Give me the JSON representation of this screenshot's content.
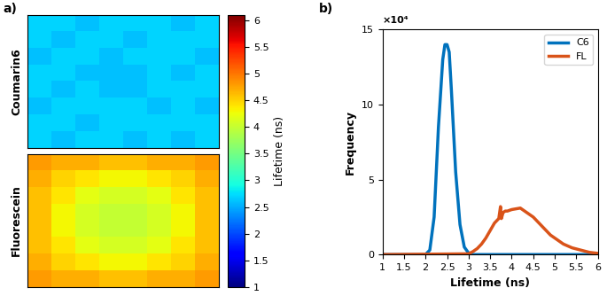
{
  "chart_data": [
    {
      "type": "heatmap",
      "title": "a)",
      "tick_labels": false,
      "panels": [
        {
          "name": "Coumarin6",
          "cells": [
            [
              2.7,
              2.7,
              2.6,
              2.7,
              2.7,
              2.7,
              2.6,
              2.7
            ],
            [
              2.7,
              2.6,
              2.7,
              2.7,
              2.6,
              2.7,
              2.7,
              2.7
            ],
            [
              2.6,
              2.7,
              2.7,
              2.6,
              2.7,
              2.7,
              2.7,
              2.6
            ],
            [
              2.7,
              2.7,
              2.6,
              2.6,
              2.6,
              2.7,
              2.6,
              2.7
            ],
            [
              2.7,
              2.6,
              2.7,
              2.6,
              2.6,
              2.7,
              2.7,
              2.7
            ],
            [
              2.6,
              2.7,
              2.7,
              2.7,
              2.7,
              2.6,
              2.7,
              2.6
            ],
            [
              2.7,
              2.7,
              2.6,
              2.7,
              2.7,
              2.7,
              2.7,
              2.7
            ],
            [
              2.7,
              2.6,
              2.7,
              2.7,
              2.6,
              2.7,
              2.6,
              2.7
            ]
          ]
        },
        {
          "name": "Fluorescein",
          "cells": [
            [
              4.8,
              4.7,
              4.7,
              4.6,
              4.6,
              4.7,
              4.7,
              4.8
            ],
            [
              4.7,
              4.5,
              4.4,
              4.3,
              4.3,
              4.4,
              4.5,
              4.7
            ],
            [
              4.6,
              4.4,
              4.2,
              4.1,
              4.1,
              4.2,
              4.4,
              4.6
            ],
            [
              4.6,
              4.3,
              4.1,
              4.0,
              4.0,
              4.1,
              4.3,
              4.6
            ],
            [
              4.6,
              4.3,
              4.1,
              4.0,
              4.0,
              4.1,
              4.3,
              4.6
            ],
            [
              4.6,
              4.4,
              4.2,
              4.1,
              4.1,
              4.2,
              4.4,
              4.6
            ],
            [
              4.7,
              4.5,
              4.4,
              4.3,
              4.3,
              4.4,
              4.5,
              4.7
            ],
            [
              4.8,
              4.7,
              4.7,
              4.6,
              4.6,
              4.7,
              4.7,
              4.8
            ]
          ]
        }
      ],
      "colorbar_label": "Lifetime (ns)",
      "colorbar_range": [
        1,
        6.1
      ],
      "colorbar_ticks": [
        1,
        1.5,
        2,
        2.5,
        3,
        3.5,
        4,
        4.5,
        5,
        5.5,
        6
      ]
    },
    {
      "type": "line",
      "title": "b)",
      "x_label": "Lifetime (ns)",
      "y_label": "Frequency",
      "annotations": [
        "×10⁴"
      ],
      "xlim": [
        1,
        6
      ],
      "xticks": [
        1,
        1.5,
        2,
        2.5,
        3,
        3.5,
        4,
        4.5,
        5,
        5.5,
        6
      ],
      "ylim": [
        0,
        15
      ],
      "yticks": [
        0,
        5,
        10,
        15
      ],
      "legend": "upper right",
      "series": [
        {
          "name": "C6",
          "color": "#0072BD",
          "x": [
            1,
            2.0,
            2.1,
            2.2,
            2.3,
            2.4,
            2.45,
            2.5,
            2.55,
            2.6,
            2.7,
            2.8,
            2.9,
            3.0,
            3.1,
            6
          ],
          "values": [
            0,
            0,
            0.3,
            2.5,
            8.5,
            13,
            14,
            14,
            13.5,
            11,
            5.5,
            2,
            0.5,
            0.1,
            0,
            0
          ]
        },
        {
          "name": "FL",
          "color": "#D95319",
          "x": [
            1,
            3.0,
            3.1,
            3.2,
            3.3,
            3.4,
            3.5,
            3.6,
            3.7,
            3.74,
            3.76,
            3.8,
            3.85,
            3.9,
            4.0,
            4.1,
            4.2,
            4.3,
            4.4,
            4.5,
            4.6,
            4.7,
            4.8,
            4.9,
            5.0,
            5.2,
            5.4,
            5.6,
            5.8,
            6.0
          ],
          "values": [
            0,
            0.05,
            0.2,
            0.4,
            0.7,
            1.1,
            1.6,
            2.1,
            2.4,
            3.2,
            2.4,
            2.8,
            2.9,
            2.9,
            3.0,
            3.05,
            3.1,
            2.9,
            2.7,
            2.5,
            2.2,
            1.9,
            1.6,
            1.3,
            1.1,
            0.7,
            0.45,
            0.3,
            0.15,
            0.08
          ]
        }
      ]
    }
  ]
}
